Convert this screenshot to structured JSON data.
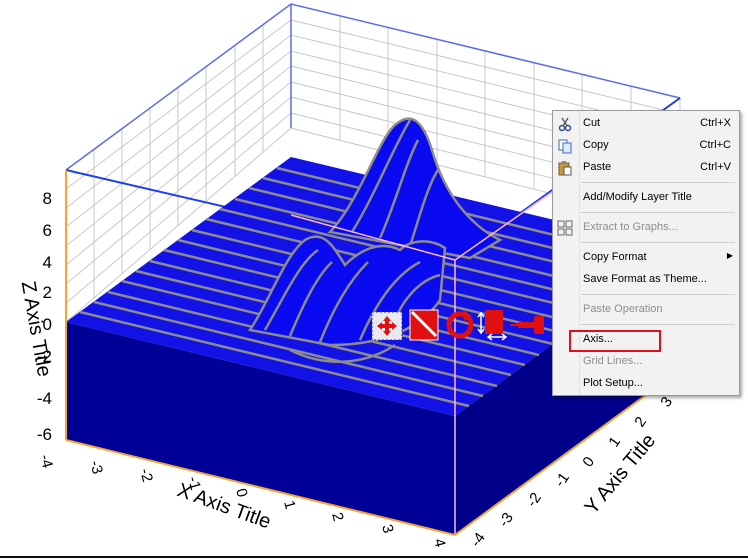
{
  "plot": {
    "z_axis_title": "Z Axis Title",
    "x_axis_title": "X Axis Title",
    "y_axis_title": "Y Axis Title",
    "z_ticks": [
      "8",
      "6",
      "4",
      "2",
      "0",
      "-2",
      "-4",
      "-6"
    ],
    "x_ticks": [
      "-4",
      "-3",
      "-2",
      "-1",
      "0",
      "1",
      "2",
      "3",
      "4"
    ],
    "y_ticks": [
      "-4",
      "-3",
      "-2",
      "-1",
      "0",
      "1",
      "2",
      "3"
    ],
    "colors": {
      "surface": "#0a0af0",
      "base": "#000096",
      "mesh": "#8c8c8c",
      "frame": "#3b5bdb",
      "x_axis": "#f3a530"
    }
  },
  "toolbar_icons": [
    "move-icon",
    "resize-icon",
    "rotate-icon",
    "stretch-icon",
    "pin-icon"
  ],
  "context_menu": {
    "items": [
      {
        "label": "Cut",
        "shortcut": "Ctrl+X",
        "icon": "scissors-icon",
        "enabled": true
      },
      {
        "label": "Copy",
        "shortcut": "Ctrl+C",
        "icon": "copy-icon",
        "enabled": true
      },
      {
        "label": "Paste",
        "shortcut": "Ctrl+V",
        "icon": "paste-icon",
        "enabled": true
      },
      {
        "label": "Add/Modify Layer Title",
        "enabled": true
      },
      {
        "label": "Extract to Graphs...",
        "icon": "extract-graphs-icon",
        "enabled": false
      },
      {
        "label": "Copy Format",
        "submenu": true,
        "enabled": true
      },
      {
        "label": "Save Format as Theme...",
        "enabled": true
      },
      {
        "label": "Paste Operation",
        "enabled": false
      },
      {
        "label": "Axis...",
        "enabled": true,
        "highlighted": true
      },
      {
        "label": "Grid Lines...",
        "enabled": false
      },
      {
        "label": "Plot Setup...",
        "enabled": true
      }
    ]
  }
}
